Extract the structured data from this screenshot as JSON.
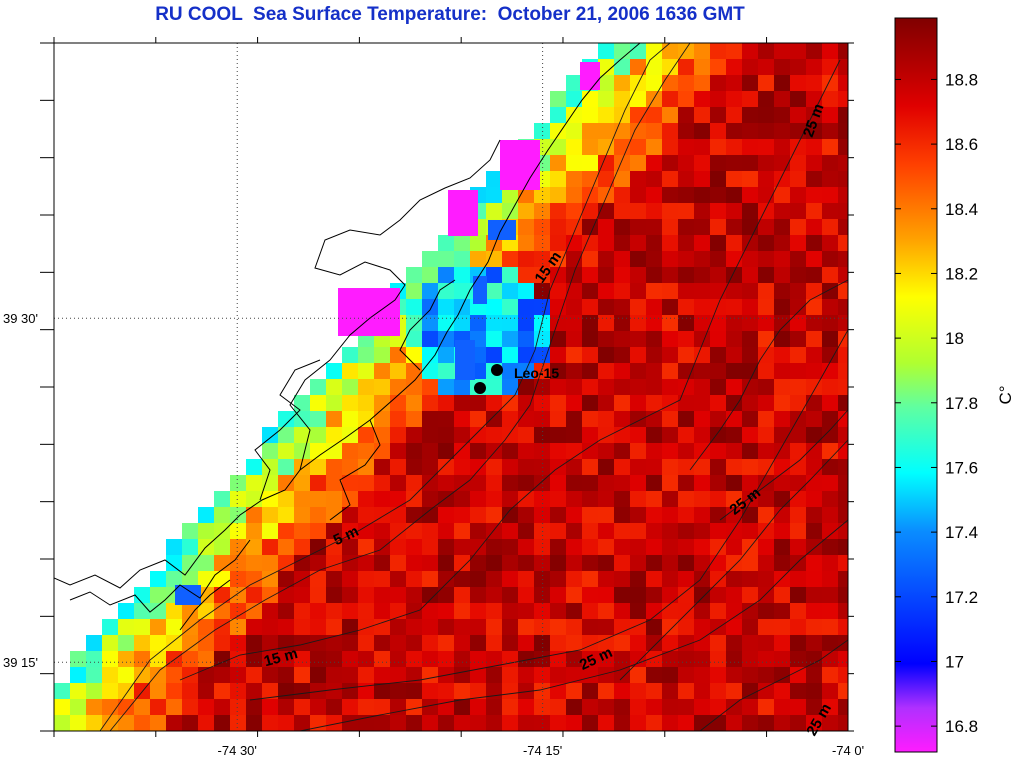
{
  "title": "RU COOL  Sea Surface Temperature:  October 21, 2006 1636 GMT",
  "map": {
    "lon_range": [
      -74.65,
      -74.0
    ],
    "lat_range": [
      39.2,
      39.7
    ],
    "lon_ticks": [
      {
        "value": -74.5,
        "label": "-74 30'"
      },
      {
        "value": -74.25,
        "label": "-74 15'"
      },
      {
        "value": -74.0,
        "label": "-74 0'"
      }
    ],
    "lat_ticks": [
      {
        "value": 39.5,
        "label": "39 30'"
      },
      {
        "value": 39.25,
        "label": "39 15'"
      }
    ],
    "isobath_labels": [
      {
        "text": "25 m",
        "rotate": -70
      },
      {
        "text": "15 m",
        "rotate": -55
      },
      {
        "text": "5 m",
        "rotate": -25
      },
      {
        "text": "25 m",
        "rotate": -38
      },
      {
        "text": "15 m",
        "rotate": -15
      },
      {
        "text": "25 m",
        "rotate": -25
      },
      {
        "text": "25 m",
        "rotate": -60
      }
    ],
    "station": {
      "label": "Leo-15"
    }
  },
  "colorbar": {
    "unit": "C°",
    "min": 16.72,
    "max": 18.99,
    "ticks": [
      "16.8",
      "17",
      "17.2",
      "17.4",
      "17.6",
      "17.8",
      "18",
      "18.2",
      "18.4",
      "18.6",
      "18.8"
    ],
    "colors": {
      "low": "#ff1cff",
      "mid_low": "#0000ff",
      "mid": "#00ffff",
      "mid_high": "#ffff00",
      "high": "#ff0000",
      "top": "#800000"
    }
  }
}
